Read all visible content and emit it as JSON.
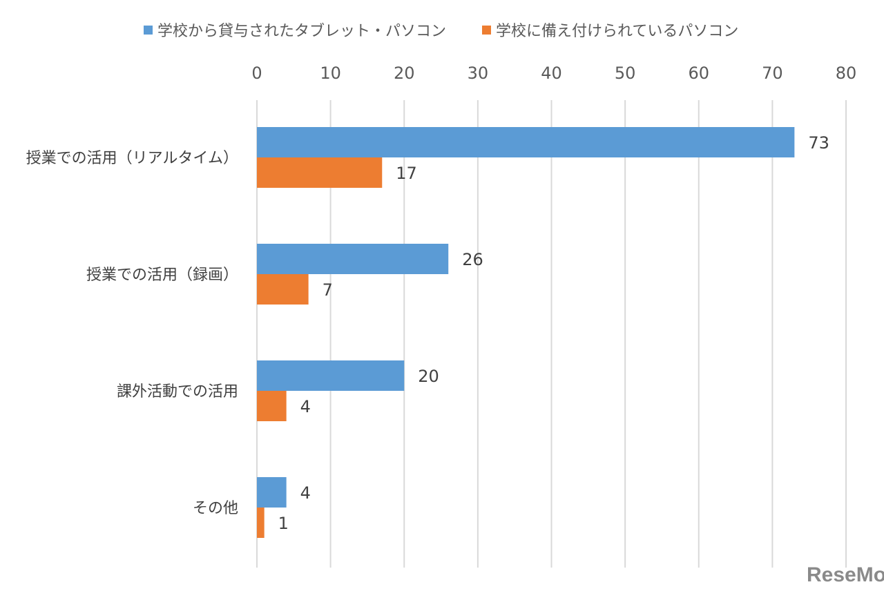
{
  "chart_data": {
    "type": "bar",
    "orientation": "horizontal",
    "categories": [
      "授業での活用（リアルタイム）",
      "授業での活用（録画）",
      "課外活動での活用",
      "その他"
    ],
    "series": [
      {
        "name": "学校から貸与されたタブレット・パソコン",
        "color": "#5B9BD5",
        "values": [
          73,
          26,
          20,
          4
        ]
      },
      {
        "name": "学校に備え付けられているパソコン",
        "color": "#ED7D31",
        "values": [
          17,
          7,
          4,
          1
        ]
      }
    ],
    "xlim": [
      0,
      80
    ],
    "xticks": [
      0,
      10,
      20,
      30,
      40,
      50,
      60,
      70,
      80
    ],
    "grid": true,
    "legend_position": "top",
    "axis_position": "top",
    "title": "",
    "xlabel": "",
    "ylabel": ""
  },
  "watermark": "ReseMom"
}
